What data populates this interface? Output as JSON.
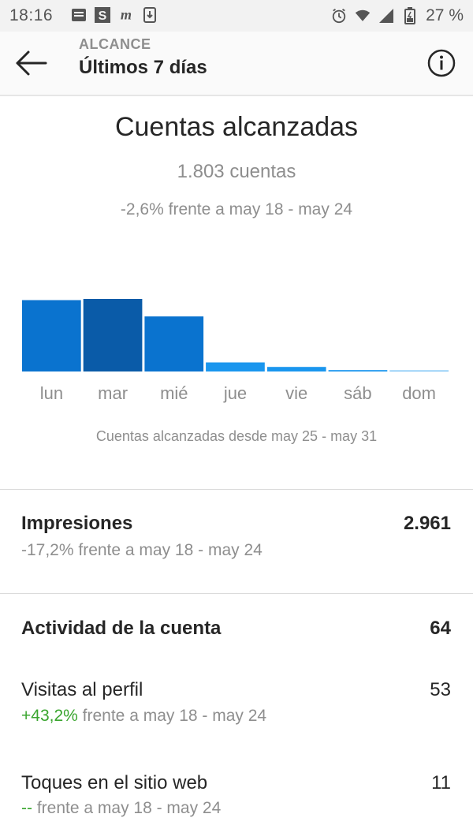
{
  "status_bar": {
    "time": "18:16",
    "battery": "27 %",
    "left_icons": [
      "notification-icon",
      "s-app-icon",
      "m-app-icon",
      "download-icon"
    ],
    "right_icons": [
      "alarm-icon",
      "wifi-icon",
      "signal-icon",
      "battery-icon"
    ]
  },
  "header": {
    "kicker": "ALCANCE",
    "title": "Últimos 7 días"
  },
  "reach": {
    "title": "Cuentas alcanzadas",
    "count": "1.803 cuentas",
    "change": "-2,6% frente a may 18 - may 24",
    "caption": "Cuentas alcanzadas desde may 25 - may 31"
  },
  "chart_data": {
    "type": "bar",
    "categories": [
      "lun",
      "mar",
      "mié",
      "jue",
      "vie",
      "sáb",
      "dom"
    ],
    "values": [
      590,
      600,
      455,
      75,
      38,
      12,
      8
    ],
    "colors": [
      "#0a73cf",
      "#0a5ba8",
      "#0a73cf",
      "#1a96ee",
      "#1a96ee",
      "#1a96ee",
      "#7cc4f6"
    ]
  },
  "impressions": {
    "label": "Impresiones",
    "value": "2.961",
    "change": "-17,2% frente a may 18 - may 24"
  },
  "activity": {
    "label": "Actividad de la cuenta",
    "value": "64"
  },
  "profile_visits": {
    "label": "Visitas al perfil",
    "value": "53",
    "change_value": "+43,2%",
    "change_text": "frente a may 18 - may 24"
  },
  "website_taps": {
    "label": "Toques en el sitio web",
    "value": "11",
    "change_value": "--",
    "change_text": "frente a may 18 - may 24"
  }
}
